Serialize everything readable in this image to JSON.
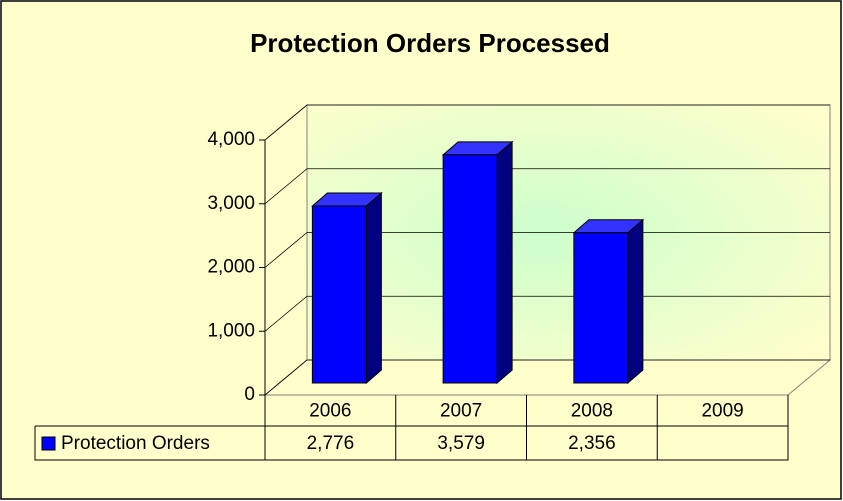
{
  "chart_data": {
    "type": "bar3d",
    "title": "Protection Orders Processed",
    "categories": [
      "2006",
      "2007",
      "2008",
      "2009"
    ],
    "series": [
      {
        "name": "Protection Orders",
        "color": "#0000ff",
        "values": [
          2776,
          3579,
          2356,
          null
        ],
        "value_labels": [
          "2,776",
          "3,579",
          "2,356",
          null
        ]
      }
    ],
    "ylim": [
      0,
      4000
    ],
    "yticks": [
      {
        "value": 0,
        "label": "0"
      },
      {
        "value": 1000,
        "label": "1,000"
      },
      {
        "value": 2000,
        "label": "2,000"
      },
      {
        "value": 3000,
        "label": "3,000"
      },
      {
        "value": 4000,
        "label": "4,000"
      }
    ],
    "grid": true,
    "data_table": true
  }
}
